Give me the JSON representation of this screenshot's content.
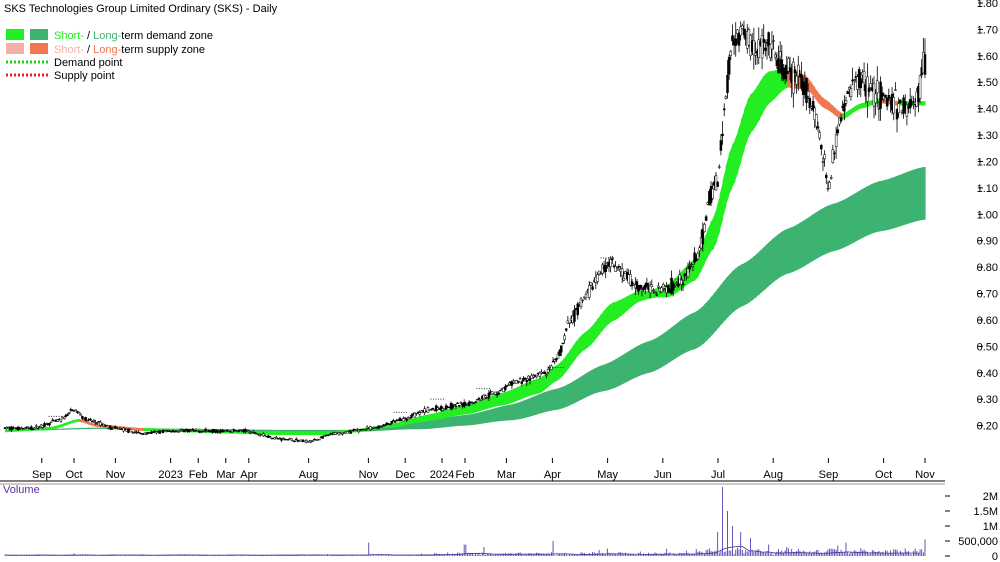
{
  "chart_data": {
    "type": "candlestick",
    "title": "SKS Technologies Group Limited Ordinary (SKS) - Daily",
    "legend": {
      "placement": "top-left",
      "demand_zone": {
        "short": "Short-",
        "sep": " / ",
        "long": "Long-",
        "rest": "term demand zone"
      },
      "supply_zone": {
        "short": "Short-",
        "sep": " / ",
        "long": "Long-",
        "rest": "term supply zone"
      },
      "demand_point": "Demand point",
      "supply_point": "Supply point"
    },
    "colors": {
      "short_demand": "#22ee22",
      "long_demand": "#3cb371",
      "short_supply": "#f4b0a8",
      "long_supply": "#f07850",
      "demand_point": "#22cc22",
      "supply_point": "#dd2222",
      "volume": "#5a3fb0",
      "candle": "#000000"
    },
    "price_axis": {
      "ticks": [
        "1.80",
        "1.70",
        "1.60",
        "1.50",
        "1.40",
        "1.30",
        "1.20",
        "1.10",
        "1.00",
        "0.90",
        "0.80",
        "0.70",
        "0.60",
        "0.50",
        "0.40",
        "0.30",
        "0.20"
      ],
      "range": [
        0.1,
        1.8
      ]
    },
    "x_axis": {
      "labels": [
        {
          "t": 0.04,
          "text": "Sep"
        },
        {
          "t": 0.075,
          "text": "Oct"
        },
        {
          "t": 0.12,
          "text": "Nov"
        },
        {
          "t": 0.18,
          "text": "2023"
        },
        {
          "t": 0.21,
          "text": "Feb"
        },
        {
          "t": 0.24,
          "text": "Mar"
        },
        {
          "t": 0.265,
          "text": "Apr"
        },
        {
          "t": 0.33,
          "text": "Aug"
        },
        {
          "t": 0.395,
          "text": "Nov"
        },
        {
          "t": 0.435,
          "text": "Dec"
        },
        {
          "t": 0.475,
          "text": "2024"
        },
        {
          "t": 0.5,
          "text": "Feb"
        },
        {
          "t": 0.545,
          "text": "Mar"
        },
        {
          "t": 0.595,
          "text": "Apr"
        },
        {
          "t": 0.655,
          "text": "May"
        },
        {
          "t": 0.715,
          "text": "Jun"
        },
        {
          "t": 0.775,
          "text": "Jul"
        },
        {
          "t": 0.835,
          "text": "Aug"
        },
        {
          "t": 0.895,
          "text": "Sep"
        },
        {
          "t": 0.955,
          "text": "Oct"
        },
        {
          "t": 1.0,
          "text": "Nov"
        }
      ]
    },
    "price_key_points": [
      [
        0.0,
        0.19
      ],
      [
        0.03,
        0.19
      ],
      [
        0.06,
        0.22
      ],
      [
        0.075,
        0.26
      ],
      [
        0.09,
        0.22
      ],
      [
        0.12,
        0.19
      ],
      [
        0.15,
        0.17
      ],
      [
        0.18,
        0.18
      ],
      [
        0.22,
        0.18
      ],
      [
        0.26,
        0.18
      ],
      [
        0.3,
        0.15
      ],
      [
        0.33,
        0.14
      ],
      [
        0.36,
        0.17
      ],
      [
        0.4,
        0.19
      ],
      [
        0.43,
        0.22
      ],
      [
        0.46,
        0.26
      ],
      [
        0.5,
        0.28
      ],
      [
        0.53,
        0.32
      ],
      [
        0.56,
        0.37
      ],
      [
        0.59,
        0.4
      ],
      [
        0.6,
        0.45
      ],
      [
        0.615,
        0.6
      ],
      [
        0.63,
        0.68
      ],
      [
        0.645,
        0.77
      ],
      [
        0.655,
        0.82
      ],
      [
        0.67,
        0.78
      ],
      [
        0.69,
        0.72
      ],
      [
        0.72,
        0.72
      ],
      [
        0.74,
        0.77
      ],
      [
        0.755,
        0.85
      ],
      [
        0.765,
        1.05
      ],
      [
        0.775,
        1.14
      ],
      [
        0.782,
        1.4
      ],
      [
        0.79,
        1.65
      ],
      [
        0.8,
        1.7
      ],
      [
        0.81,
        1.65
      ],
      [
        0.83,
        1.62
      ],
      [
        0.85,
        1.53
      ],
      [
        0.86,
        1.52
      ],
      [
        0.87,
        1.48
      ],
      [
        0.88,
        1.38
      ],
      [
        0.89,
        1.22
      ],
      [
        0.895,
        1.08
      ],
      [
        0.905,
        1.33
      ],
      [
        0.915,
        1.45
      ],
      [
        0.93,
        1.52
      ],
      [
        0.945,
        1.46
      ],
      [
        0.96,
        1.43
      ],
      [
        0.975,
        1.4
      ],
      [
        0.99,
        1.42
      ],
      [
        1.0,
        1.59
      ]
    ],
    "short_ema": [
      [
        0.0,
        0.18
      ],
      [
        0.05,
        0.19
      ],
      [
        0.08,
        0.22
      ],
      [
        0.1,
        0.2
      ],
      [
        0.15,
        0.185
      ],
      [
        0.2,
        0.18
      ],
      [
        0.25,
        0.175
      ],
      [
        0.3,
        0.17
      ],
      [
        0.35,
        0.17
      ],
      [
        0.38,
        0.18
      ],
      [
        0.42,
        0.2
      ],
      [
        0.46,
        0.23
      ],
      [
        0.5,
        0.26
      ],
      [
        0.54,
        0.3
      ],
      [
        0.58,
        0.35
      ],
      [
        0.6,
        0.4
      ],
      [
        0.63,
        0.52
      ],
      [
        0.66,
        0.63
      ],
      [
        0.69,
        0.69
      ],
      [
        0.72,
        0.71
      ],
      [
        0.75,
        0.79
      ],
      [
        0.77,
        0.93
      ],
      [
        0.79,
        1.18
      ],
      [
        0.81,
        1.38
      ],
      [
        0.83,
        1.48
      ],
      [
        0.85,
        1.52
      ],
      [
        0.87,
        1.5
      ],
      [
        0.89,
        1.42
      ],
      [
        0.91,
        1.37
      ],
      [
        0.93,
        1.41
      ],
      [
        0.95,
        1.43
      ],
      [
        0.97,
        1.42
      ],
      [
        1.0,
        1.42
      ]
    ],
    "short_band_halfwidth": [
      [
        0.0,
        0.005
      ],
      [
        0.4,
        0.006
      ],
      [
        0.6,
        0.03
      ],
      [
        0.66,
        0.035
      ],
      [
        0.7,
        0.015
      ],
      [
        0.75,
        0.04
      ],
      [
        0.79,
        0.08
      ],
      [
        0.82,
        0.07
      ],
      [
        0.85,
        0.04
      ],
      [
        0.88,
        0.02
      ],
      [
        0.92,
        0.01
      ],
      [
        1.0,
        0.008
      ]
    ],
    "long_ema": [
      [
        0.0,
        0.18
      ],
      [
        0.1,
        0.19
      ],
      [
        0.2,
        0.185
      ],
      [
        0.3,
        0.18
      ],
      [
        0.38,
        0.18
      ],
      [
        0.45,
        0.2
      ],
      [
        0.5,
        0.22
      ],
      [
        0.55,
        0.25
      ],
      [
        0.6,
        0.3
      ],
      [
        0.65,
        0.38
      ],
      [
        0.7,
        0.46
      ],
      [
        0.75,
        0.56
      ],
      [
        0.8,
        0.73
      ],
      [
        0.85,
        0.86
      ],
      [
        0.9,
        0.95
      ],
      [
        0.95,
        1.03
      ],
      [
        1.0,
        1.08
      ]
    ],
    "long_band_halfwidth": [
      [
        0.0,
        0.002
      ],
      [
        0.38,
        0.004
      ],
      [
        0.5,
        0.02
      ],
      [
        0.6,
        0.04
      ],
      [
        0.7,
        0.06
      ],
      [
        0.8,
        0.08
      ],
      [
        0.9,
        0.09
      ],
      [
        1.0,
        0.1
      ]
    ],
    "volume_axis": {
      "ticks": [
        "2M",
        "1.5M",
        "1M",
        "500,000",
        "0"
      ],
      "range": [
        0,
        2200000
      ],
      "title": "Volume"
    },
    "volume_spikes": [
      [
        0.04,
        35000
      ],
      [
        0.075,
        90000
      ],
      [
        0.12,
        20000
      ],
      [
        0.15,
        50000
      ],
      [
        0.22,
        25000
      ],
      [
        0.3,
        40000
      ],
      [
        0.35,
        60000
      ],
      [
        0.395,
        450000
      ],
      [
        0.47,
        60000
      ],
      [
        0.5,
        380000
      ],
      [
        0.52,
        300000
      ],
      [
        0.56,
        120000
      ],
      [
        0.585,
        90000
      ],
      [
        0.595,
        500000
      ],
      [
        0.645,
        200000
      ],
      [
        0.655,
        250000
      ],
      [
        0.67,
        110000
      ],
      [
        0.69,
        150000
      ],
      [
        0.72,
        240000
      ],
      [
        0.74,
        180000
      ],
      [
        0.755,
        160000
      ],
      [
        0.765,
        250000
      ],
      [
        0.775,
        800000
      ],
      [
        0.78,
        2300000
      ],
      [
        0.785,
        1500000
      ],
      [
        0.79,
        1000000
      ],
      [
        0.8,
        800000
      ],
      [
        0.81,
        600000
      ],
      [
        0.83,
        380000
      ],
      [
        0.85,
        300000
      ],
      [
        0.87,
        150000
      ],
      [
        0.895,
        220000
      ],
      [
        0.905,
        350000
      ],
      [
        0.915,
        450000
      ],
      [
        0.93,
        260000
      ],
      [
        0.95,
        170000
      ],
      [
        0.97,
        210000
      ],
      [
        0.99,
        250000
      ],
      [
        1.0,
        550000
      ]
    ]
  }
}
